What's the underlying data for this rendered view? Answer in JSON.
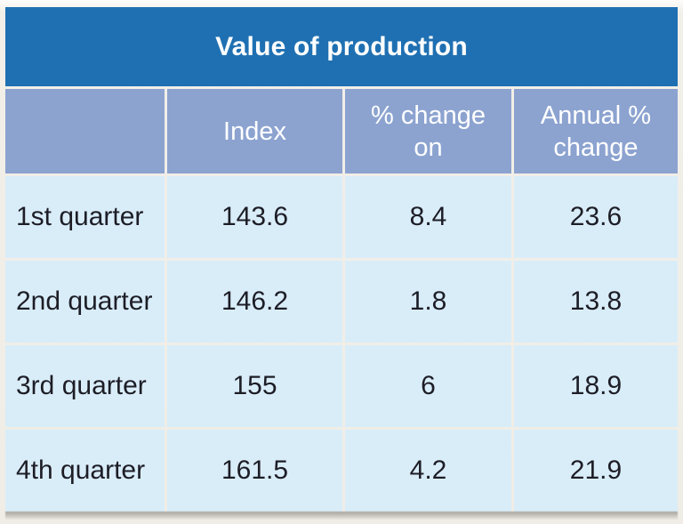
{
  "table": {
    "title": "Value of production",
    "columns": [
      "",
      "Index",
      "% change on",
      "Annual % change"
    ],
    "rows": [
      {
        "cells": [
          "1st quarter",
          "143.6",
          "8.4",
          "23.6"
        ]
      },
      {
        "cells": [
          "2nd quarter",
          "146.2",
          "1.8",
          "13.8"
        ]
      },
      {
        "cells": [
          "3rd quarter",
          "155",
          "6",
          "18.9"
        ]
      },
      {
        "cells": [
          "4th quarter",
          "161.5",
          "4.2",
          "21.9"
        ]
      }
    ]
  },
  "colors": {
    "title_bar": "#1F70B2",
    "header_row": "#8CA3D0",
    "data_row": "#D9EDF9",
    "header_text": "#FFFFFF",
    "data_text": "#1D1D26",
    "page_background": "#F2EFE9"
  },
  "chart_data": {
    "type": "table",
    "title": "Value of production",
    "columns": [
      "",
      "Index",
      "% change on",
      "Annual % change"
    ],
    "rows": [
      [
        "1st quarter",
        143.6,
        8.4,
        23.6
      ],
      [
        "2nd quarter",
        146.2,
        1.8,
        13.8
      ],
      [
        "3rd quarter",
        155,
        6,
        18.9
      ],
      [
        "4th quarter",
        161.5,
        4.2,
        21.9
      ]
    ]
  }
}
